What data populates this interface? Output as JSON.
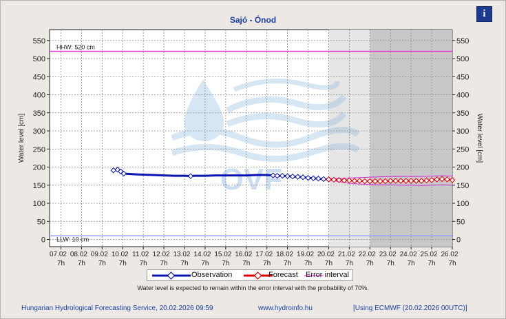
{
  "title": "Sajó - Ónod",
  "info_icon": "info-icon",
  "hhw_label": "HHW: 520 cm",
  "llw_label": "LLW: 10 cm",
  "legend": {
    "observation": "Observation",
    "forecast": "Forecast",
    "error_interval": "Error interval"
  },
  "note": "Water level is expected to remain within the error interval with the probability of 70%.",
  "footer": {
    "service": "Hungarian Hydrological Forecasting Service, 20.02.2026 09:59",
    "website": "www.hydroinfo.hu",
    "model": "[Using ECMWF (20.02.2026  00UTC)]"
  },
  "watermark": "OVF",
  "colors": {
    "observation": "#0a14b4",
    "forecast": "#e00000",
    "error_interval": "#d42ad4",
    "hhw_line": "#e040e0",
    "llw_line": "#9aa0ff",
    "title": "#1a3fa8"
  },
  "chart_data": {
    "type": "line",
    "title": "Sajó - Ónod",
    "ylabel": "Water level [cm]",
    "ylabel_right": "Water level [cm]",
    "ylim": [
      -20,
      580
    ],
    "yticks": [
      0,
      50,
      100,
      150,
      200,
      250,
      300,
      350,
      400,
      450,
      500,
      550
    ],
    "x_date_ticks": [
      "07.02",
      "08.02",
      "09.02",
      "10.02",
      "11.02",
      "12.02",
      "13.02",
      "14.02",
      "15.02",
      "16.02",
      "17.02",
      "18.02",
      "19.02",
      "20.02",
      "21.02",
      "22.02",
      "23.02",
      "24.02",
      "25.02",
      "26.02"
    ],
    "x_time_ticks": [
      "7h",
      "7h",
      "7h",
      "7h",
      "7h",
      "7h",
      "7h",
      "7h",
      "7h",
      "7h",
      "7h",
      "7h",
      "7h",
      "7h",
      "7h",
      "7h",
      "7h",
      "7h",
      "7h",
      "7h"
    ],
    "xlim_days": [
      6.45,
      26.0
    ],
    "reference_lines": [
      {
        "label": "HHW: 520 cm",
        "value": 520
      },
      {
        "label": "LLW: 10 cm",
        "value": 10
      }
    ],
    "shaded_periods": [
      {
        "from_day": 20.0,
        "to_day": 22.0,
        "shade": "light"
      },
      {
        "from_day": 22.0,
        "to_day": 26.0,
        "shade": "dark"
      }
    ],
    "grid": true,
    "legend_position": "bottom",
    "series": [
      {
        "name": "Observation",
        "x_days": [
          9.55,
          9.75,
          9.9,
          10.05,
          10.3,
          10.6,
          11.0,
          11.5,
          12.0,
          12.5,
          13.0,
          13.3,
          13.5,
          14.0,
          14.5,
          15.0,
          15.5,
          16.0,
          16.5,
          17.0,
          17.3,
          17.5,
          17.75,
          18.0,
          18.25,
          18.5,
          18.75,
          19.0,
          19.25,
          19.5,
          19.75,
          20.0
        ],
        "values": [
          191,
          193,
          188,
          182,
          181,
          180,
          179,
          178,
          177,
          176,
          176,
          175,
          176,
          176,
          177,
          177,
          177,
          177,
          178,
          178,
          177,
          176,
          176,
          175,
          174,
          173,
          172,
          170,
          169,
          168,
          167,
          166
        ],
        "markers_x_days": [
          9.55,
          9.75,
          9.9,
          10.05,
          13.3,
          17.3,
          17.5,
          17.75,
          18.0,
          18.25,
          18.5,
          18.75,
          19.0,
          19.25,
          19.5,
          19.75,
          20.0
        ]
      },
      {
        "name": "Forecast",
        "x_days": [
          20.0,
          20.25,
          20.5,
          20.75,
          21.0,
          21.25,
          21.5,
          21.75,
          22.0,
          22.25,
          22.5,
          22.75,
          23.0,
          23.25,
          23.5,
          23.75,
          24.0,
          24.25,
          24.5,
          24.75,
          25.0,
          25.25,
          25.5,
          25.75,
          26.0
        ],
        "values": [
          166,
          165,
          164,
          163,
          163,
          162,
          162,
          161,
          161,
          161,
          161,
          161,
          162,
          162,
          162,
          162,
          162,
          162,
          162,
          163,
          164,
          166,
          167,
          166,
          164
        ]
      },
      {
        "name": "Error interval",
        "x_days": [
          20.0,
          20.5,
          21.0,
          21.5,
          22.0,
          22.5,
          23.0,
          23.5,
          24.0,
          24.5,
          25.0,
          25.5,
          26.0
        ],
        "upper": [
          168,
          169,
          170,
          171,
          172,
          173,
          174,
          174,
          174,
          174,
          175,
          176,
          175
        ],
        "lower": [
          164,
          160,
          155,
          153,
          152,
          151,
          151,
          150,
          150,
          149,
          150,
          151,
          150
        ]
      }
    ]
  }
}
